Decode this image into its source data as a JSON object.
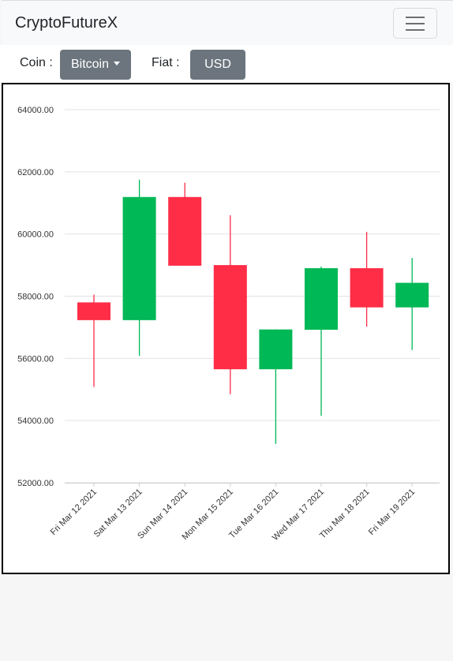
{
  "navbar": {
    "brand": "CryptoFutureX",
    "toggler_icon": "hamburger-menu-icon"
  },
  "controls": {
    "coin_label": "Coin :",
    "coin_selected": "Bitcoin",
    "fiat_label": "Fiat :",
    "fiat_selected": "USD",
    "button_color": "#6c757d"
  },
  "chart_data": {
    "type": "candlestick",
    "ylim": [
      52000,
      64000
    ],
    "yticks": [
      "52000.00",
      "54000.00",
      "56000.00",
      "58000.00",
      "60000.00",
      "62000.00",
      "64000.00"
    ],
    "grid": true,
    "colors": {
      "up": "#00b856",
      "down": "#ff2d46"
    },
    "candles": [
      {
        "date": "Fri Mar 12 2021",
        "open": 57800,
        "high": 58050,
        "low": 55080,
        "close": 57230
      },
      {
        "date": "Sat Mar 13 2021",
        "open": 57230,
        "high": 61750,
        "low": 56080,
        "close": 61190
      },
      {
        "date": "Sun Mar 14 2021",
        "open": 61190,
        "high": 61650,
        "low": 58980,
        "close": 58980
      },
      {
        "date": "Mon Mar 15 2021",
        "open": 59000,
        "high": 60600,
        "low": 54850,
        "close": 55650
      },
      {
        "date": "Tue Mar 16 2021",
        "open": 55650,
        "high": 56930,
        "low": 53250,
        "close": 56930
      },
      {
        "date": "Wed Mar 17 2021",
        "open": 56920,
        "high": 58950,
        "low": 54150,
        "close": 58900
      },
      {
        "date": "Thu Mar 18 2021",
        "open": 58900,
        "high": 60070,
        "low": 57020,
        "close": 57640
      },
      {
        "date": "Fri Mar 19 2021",
        "open": 57640,
        "high": 59230,
        "low": 56270,
        "close": 58430
      }
    ]
  }
}
